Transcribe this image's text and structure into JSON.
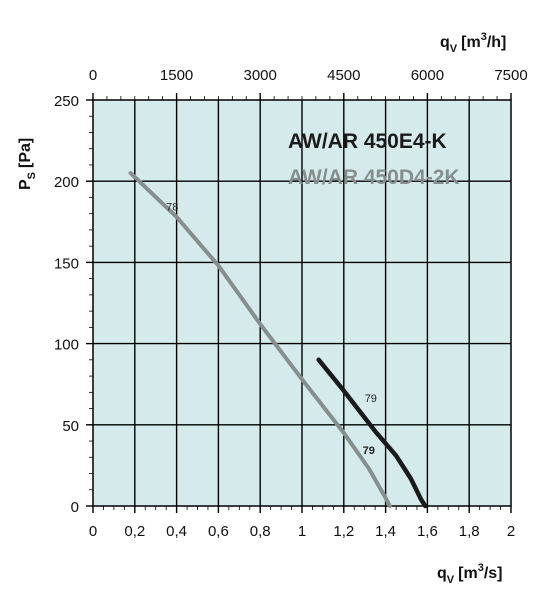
{
  "chart_data": {
    "type": "line",
    "title": "",
    "x_bottom": {
      "label_main": "q",
      "label_sub": "V",
      "label_units": "[m",
      "label_sup": "3",
      "label_end": "/s]",
      "range": [
        0,
        2
      ],
      "ticks": [
        "0",
        "0,2",
        "0,4",
        "0,6",
        "0,8",
        "1",
        "1,2",
        "1,4",
        "1,6",
        "1,8",
        "2"
      ]
    },
    "x_top": {
      "label_main": "q",
      "label_sub": "V",
      "label_units": "[m",
      "label_sup": "3",
      "label_end": "/h]",
      "range": [
        0,
        7500
      ],
      "ticks": [
        "0",
        "1500",
        "3000",
        "4500",
        "6000",
        "7500"
      ]
    },
    "y": {
      "label_main": "P",
      "label_sub": "S",
      "label_end": "[Pa]",
      "range": [
        0,
        250
      ],
      "ticks": [
        "0",
        "50",
        "100",
        "150",
        "200",
        "250"
      ]
    },
    "grid": true,
    "legend_position": "top-right",
    "series": [
      {
        "name": "AW/AR 450E4-K",
        "color": "#1a1a1a",
        "points": [
          [
            1.08,
            90
          ],
          [
            1.2,
            71
          ],
          [
            1.35,
            46
          ],
          [
            1.45,
            31
          ],
          [
            1.52,
            17
          ],
          [
            1.57,
            4
          ],
          [
            1.59,
            0
          ]
        ],
        "labels": [
          "79",
          "79"
        ]
      },
      {
        "name": "AW/AR 450D4-2K",
        "color": "#868e8e",
        "points": [
          [
            0.18,
            205
          ],
          [
            0.4,
            178
          ],
          [
            0.6,
            148
          ],
          [
            0.8,
            112
          ],
          [
            1.0,
            78
          ],
          [
            1.2,
            45
          ],
          [
            1.32,
            23
          ],
          [
            1.4,
            5
          ],
          [
            1.42,
            0
          ]
        ],
        "labels": [
          "78"
        ]
      }
    ]
  }
}
